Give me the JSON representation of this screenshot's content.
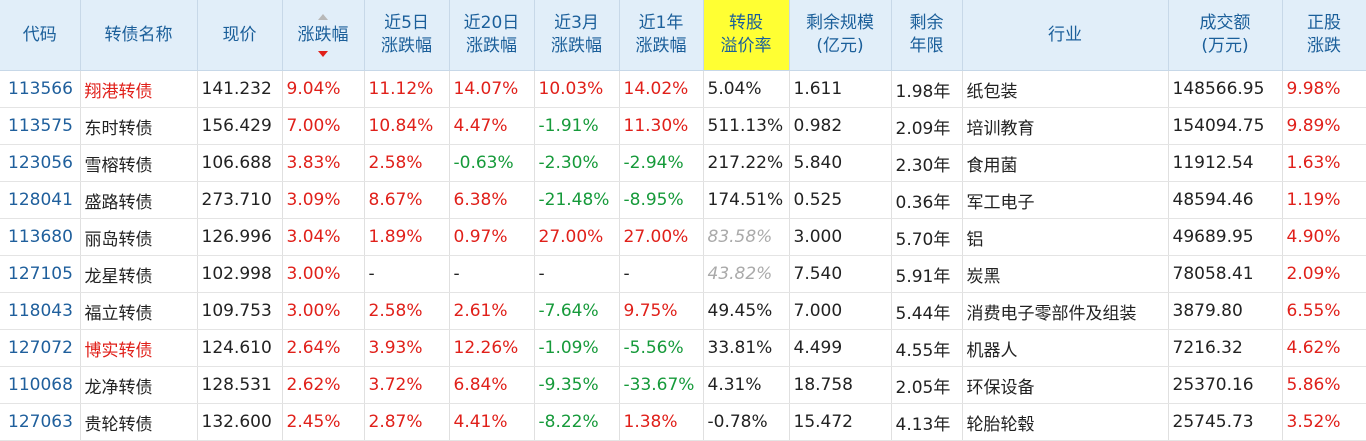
{
  "columns": {
    "code": "代码",
    "name": "转债名称",
    "price": "现价",
    "change": "涨跌幅",
    "chg5d_l1": "近5日",
    "chg5d_l2": "涨跌幅",
    "chg20d_l1": "近20日",
    "chg20d_l2": "涨跌幅",
    "chg3m_l1": "近3月",
    "chg3m_l2": "涨跌幅",
    "chg1y_l1": "近1年",
    "chg1y_l2": "涨跌幅",
    "premium_l1": "转股",
    "premium_l2": "溢价率",
    "scale_l1": "剩余规模",
    "scale_l2": "(亿元)",
    "years_l1": "剩余",
    "years_l2": "年限",
    "industry": "行业",
    "volume_l1": "成交额",
    "volume_l2": "(万元)",
    "stock_l1": "正股",
    "stock_l2": "涨跌"
  },
  "colors": {
    "up": "#e0201a",
    "down": "#169a3a",
    "header_bg": "#e1eef9",
    "highlight": "#ffff33",
    "link": "#1f5f9c"
  },
  "icons": {
    "sort_asc": "triangle-up-icon",
    "sort_desc": "triangle-down-icon"
  },
  "rows": [
    {
      "code": "113566",
      "name": "翔港转债",
      "name_red": true,
      "price": "141.232",
      "change": "9.04%",
      "d5": "11.12%",
      "d20": "14.07%",
      "m3": "10.03%",
      "y1": "14.02%",
      "premium": "5.04%",
      "scale": "1.611",
      "years": "1.98年",
      "industry": "纸包装",
      "volume": "148566.95",
      "stock": "9.98%"
    },
    {
      "code": "113575",
      "name": "东时转债",
      "name_red": false,
      "price": "156.429",
      "change": "7.00%",
      "d5": "10.84%",
      "d20": "4.47%",
      "m3": "-1.91%",
      "y1": "11.30%",
      "premium": "511.13%",
      "scale": "0.982",
      "years": "2.09年",
      "industry": "培训教育",
      "volume": "154094.75",
      "stock": "9.89%"
    },
    {
      "code": "123056",
      "name": "雪榕转债",
      "name_red": false,
      "price": "106.688",
      "change": "3.83%",
      "d5": "2.58%",
      "d20": "-0.63%",
      "m3": "-2.30%",
      "y1": "-2.94%",
      "premium": "217.22%",
      "scale": "5.840",
      "years": "2.30年",
      "industry": "食用菌",
      "volume": "11912.54",
      "stock": "1.63%"
    },
    {
      "code": "128041",
      "name": "盛路转债",
      "name_red": false,
      "price": "273.710",
      "change": "3.09%",
      "d5": "8.67%",
      "d20": "6.38%",
      "m3": "-21.48%",
      "y1": "-8.95%",
      "premium": "174.51%",
      "scale": "0.525",
      "years": "0.36年",
      "industry": "军工电子",
      "volume": "48594.46",
      "stock": "1.19%"
    },
    {
      "code": "113680",
      "name": "丽岛转债",
      "name_red": false,
      "price": "126.996",
      "change": "3.04%",
      "d5": "1.89%",
      "d20": "0.97%",
      "m3": "27.00%",
      "y1": "27.00%",
      "premium": "83.58%",
      "premium_gray": true,
      "scale": "3.000",
      "years": "5.70年",
      "industry": "铝",
      "volume": "49689.95",
      "stock": "4.90%"
    },
    {
      "code": "127105",
      "name": "龙星转债",
      "name_red": false,
      "price": "102.998",
      "change": "3.00%",
      "d5": "-",
      "d20": "-",
      "m3": "-",
      "y1": "-",
      "premium": "43.82%",
      "premium_gray": true,
      "scale": "7.540",
      "years": "5.91年",
      "industry": "炭黑",
      "volume": "78058.41",
      "stock": "2.09%"
    },
    {
      "code": "118043",
      "name": "福立转债",
      "name_red": false,
      "price": "109.753",
      "change": "3.00%",
      "d5": "2.58%",
      "d20": "2.61%",
      "m3": "-7.64%",
      "y1": "9.75%",
      "premium": "49.45%",
      "scale": "7.000",
      "years": "5.44年",
      "industry": "消费电子零部件及组装",
      "volume": "3879.80",
      "stock": "6.55%"
    },
    {
      "code": "127072",
      "name": "博实转债",
      "name_red": true,
      "price": "124.610",
      "change": "2.64%",
      "d5": "3.93%",
      "d20": "12.26%",
      "m3": "-1.09%",
      "y1": "-5.56%",
      "premium": "33.81%",
      "scale": "4.499",
      "years": "4.55年",
      "industry": "机器人",
      "volume": "7216.32",
      "stock": "4.62%"
    },
    {
      "code": "110068",
      "name": "龙净转债",
      "name_red": false,
      "price": "128.531",
      "change": "2.62%",
      "d5": "3.72%",
      "d20": "6.84%",
      "m3": "-9.35%",
      "y1": "-33.67%",
      "premium": "4.31%",
      "scale": "18.758",
      "years": "2.05年",
      "industry": "环保设备",
      "volume": "25370.16",
      "stock": "5.86%"
    },
    {
      "code": "127063",
      "name": "贵轮转债",
      "name_red": false,
      "price": "132.600",
      "change": "2.45%",
      "d5": "2.87%",
      "d20": "4.41%",
      "m3": "-8.22%",
      "y1": "1.38%",
      "premium": "-0.78%",
      "scale": "15.472",
      "years": "4.13年",
      "industry": "轮胎轮毂",
      "volume": "25745.73",
      "stock": "3.52%"
    }
  ]
}
